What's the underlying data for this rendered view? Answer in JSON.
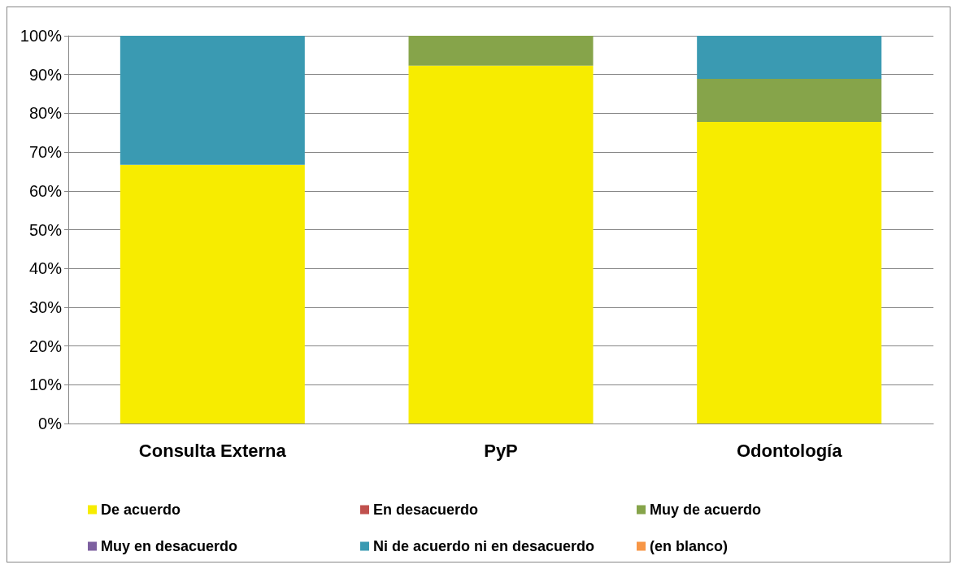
{
  "chart_data": {
    "type": "bar",
    "stacked": true,
    "categories": [
      "Consulta Externa",
      "PyP",
      "Odontología"
    ],
    "series": [
      {
        "name": "De acuerdo",
        "color": "#f7ec00",
        "values": [
          66.7,
          92.3,
          77.8
        ]
      },
      {
        "name": "En desacuerdo",
        "color": "#c0504d",
        "values": [
          0,
          0,
          0
        ]
      },
      {
        "name": "Muy de acuerdo",
        "color": "#86a44a",
        "values": [
          0,
          7.7,
          11.1
        ]
      },
      {
        "name": "Muy en desacuerdo",
        "color": "#7d60a0",
        "values": [
          0,
          0,
          0
        ]
      },
      {
        "name": "Ni de acuerdo ni en desacuerdo",
        "color": "#3a9ab2",
        "values": [
          33.3,
          0,
          11.1
        ]
      },
      {
        "name": "(en blanco)",
        "color": "#f79646",
        "values": [
          0,
          0,
          0
        ]
      }
    ],
    "ylim": [
      0,
      100
    ],
    "yticks": [
      {
        "value": 0,
        "label": "0%"
      },
      {
        "value": 10,
        "label": "10%"
      },
      {
        "value": 20,
        "label": "20%"
      },
      {
        "value": 30,
        "label": "30%"
      },
      {
        "value": 40,
        "label": "40%"
      },
      {
        "value": 50,
        "label": "50%"
      },
      {
        "value": 60,
        "label": "60%"
      },
      {
        "value": 70,
        "label": "70%"
      },
      {
        "value": 80,
        "label": "80%"
      },
      {
        "value": 90,
        "label": "90%"
      },
      {
        "value": 100,
        "label": "100%"
      }
    ],
    "grid": "y",
    "legend": "bottom"
  }
}
